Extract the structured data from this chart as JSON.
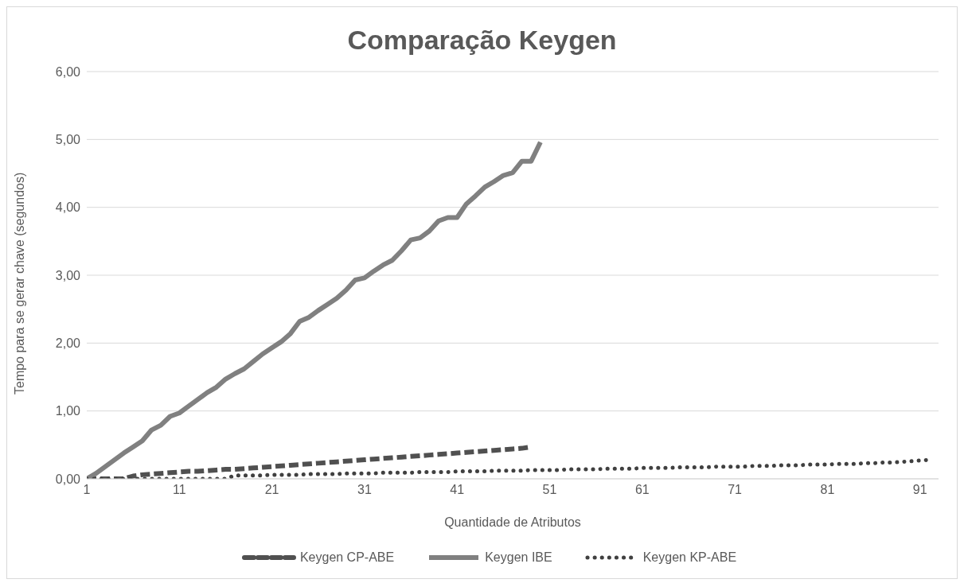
{
  "chart_data": {
    "type": "line",
    "title": "Comparação Keygen",
    "xlabel": "Quantidade de Atributos",
    "ylabel": "Tempo para se gerar chave (segundos)",
    "x": [
      1,
      2,
      3,
      4,
      5,
      6,
      7,
      8,
      9,
      10,
      11,
      12,
      13,
      14,
      15,
      16,
      17,
      18,
      19,
      20,
      21,
      22,
      23,
      24,
      25,
      26,
      27,
      28,
      29,
      30,
      31,
      32,
      33,
      34,
      35,
      36,
      37,
      38,
      39,
      40,
      41,
      42,
      43,
      44,
      45,
      46,
      47,
      48,
      49,
      50,
      51,
      52,
      53,
      54,
      55,
      56,
      57,
      58,
      59,
      60,
      61,
      62,
      63,
      64,
      65,
      66,
      67,
      68,
      69,
      70,
      71,
      72,
      73,
      74,
      75,
      76,
      77,
      78,
      79,
      80,
      81,
      82,
      83,
      84,
      85,
      86,
      87,
      88,
      89,
      90,
      91,
      92
    ],
    "xlim": [
      1,
      93
    ],
    "xticks": [
      1,
      11,
      21,
      31,
      41,
      51,
      61,
      71,
      81,
      91
    ],
    "ylim": [
      0,
      6
    ],
    "yticks": [
      {
        "value": 0,
        "label": "0,00"
      },
      {
        "value": 1,
        "label": "1,00"
      },
      {
        "value": 2,
        "label": "2,00"
      },
      {
        "value": 3,
        "label": "3,00"
      },
      {
        "value": 4,
        "label": "4,00"
      },
      {
        "value": 5,
        "label": "5,00"
      },
      {
        "value": 6,
        "label": "6,00"
      }
    ],
    "grid": "y",
    "legend": "bottom",
    "marker": "none",
    "series": [
      {
        "name": "Keygen CP-ABE",
        "color": "#505050",
        "line_style": "dashed",
        "x": [
          1,
          2,
          3,
          4,
          5,
          6,
          7,
          8,
          9,
          10,
          11,
          12,
          13,
          14,
          15,
          16,
          17,
          18,
          19,
          20,
          21,
          22,
          23,
          24,
          25,
          26,
          27,
          28,
          29,
          30,
          31,
          32,
          33,
          34,
          35,
          36,
          37,
          38,
          39,
          40,
          41,
          42,
          43,
          44,
          45,
          46,
          47,
          48,
          49
        ],
        "values": [
          0,
          0,
          0,
          0,
          0,
          0.04,
          0.06,
          0.07,
          0.08,
          0.09,
          0.1,
          0.11,
          0.11,
          0.12,
          0.13,
          0.14,
          0.14,
          0.15,
          0.16,
          0.17,
          0.18,
          0.19,
          0.2,
          0.21,
          0.22,
          0.23,
          0.24,
          0.25,
          0.26,
          0.27,
          0.28,
          0.29,
          0.3,
          0.31,
          0.32,
          0.33,
          0.34,
          0.35,
          0.36,
          0.37,
          0.38,
          0.39,
          0.4,
          0.41,
          0.42,
          0.43,
          0.44,
          0.45,
          0.47
        ]
      },
      {
        "name": "Keygen IBE",
        "color": "#808080",
        "line_style": "solid",
        "x": [
          1,
          2,
          3,
          4,
          5,
          6,
          7,
          8,
          9,
          10,
          11,
          12,
          13,
          14,
          15,
          16,
          17,
          18,
          19,
          20,
          21,
          22,
          23,
          24,
          25,
          26,
          27,
          28,
          29,
          30,
          31,
          32,
          33,
          34,
          35,
          36,
          37,
          38,
          39,
          40,
          41,
          42,
          43,
          44,
          45,
          46,
          47,
          48,
          49,
          50
        ],
        "values": [
          0,
          0.08,
          0.18,
          0.28,
          0.38,
          0.47,
          0.56,
          0.72,
          0.79,
          0.92,
          0.97,
          1.07,
          1.17,
          1.27,
          1.35,
          1.47,
          1.55,
          1.62,
          1.73,
          1.84,
          1.93,
          2.02,
          2.14,
          2.32,
          2.38,
          2.48,
          2.57,
          2.66,
          2.78,
          2.93,
          2.96,
          3.06,
          3.15,
          3.22,
          3.36,
          3.52,
          3.55,
          3.65,
          3.8,
          3.85,
          3.85,
          4.05,
          4.17,
          4.3,
          4.38,
          4.47,
          4.51,
          4.68,
          4.68,
          4.96
        ]
      },
      {
        "name": "Keygen KP-ABE",
        "color": "#404040",
        "line_style": "dotted",
        "values": [
          0,
          0,
          0,
          0,
          0,
          0,
          0,
          0,
          0,
          0,
          0,
          0,
          0,
          0,
          0,
          0,
          0.05,
          0.05,
          0.05,
          0.05,
          0.06,
          0.06,
          0.06,
          0.06,
          0.07,
          0.07,
          0.07,
          0.07,
          0.08,
          0.08,
          0.08,
          0.08,
          0.09,
          0.09,
          0.09,
          0.09,
          0.1,
          0.1,
          0.1,
          0.1,
          0.11,
          0.11,
          0.11,
          0.11,
          0.12,
          0.12,
          0.12,
          0.12,
          0.13,
          0.13,
          0.13,
          0.13,
          0.14,
          0.14,
          0.14,
          0.14,
          0.15,
          0.15,
          0.15,
          0.15,
          0.16,
          0.16,
          0.16,
          0.16,
          0.17,
          0.17,
          0.17,
          0.17,
          0.18,
          0.18,
          0.18,
          0.18,
          0.19,
          0.19,
          0.19,
          0.2,
          0.2,
          0.2,
          0.21,
          0.21,
          0.21,
          0.22,
          0.22,
          0.22,
          0.23,
          0.23,
          0.24,
          0.24,
          0.25,
          0.26,
          0.27,
          0.28
        ]
      }
    ]
  }
}
